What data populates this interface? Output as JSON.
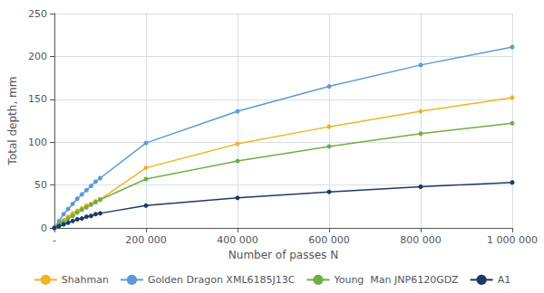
{
  "chart_data": {
    "type": "line",
    "xlabel": "Number of passes N",
    "ylabel": "Total depth, mm",
    "x": [
      0,
      10000,
      20000,
      30000,
      40000,
      50000,
      60000,
      70000,
      80000,
      90000,
      100000,
      200000,
      400000,
      600000,
      800000,
      1000000
    ],
    "series": [
      {
        "name": "Shahman",
        "color": "#f0b323",
        "values": [
          0,
          5,
          9,
          13,
          17,
          20,
          23,
          26,
          28,
          31,
          33,
          70,
          98,
          118,
          136,
          152
        ]
      },
      {
        "name": "Golden Dragon XML6185J13C",
        "color": "#5b9bd5",
        "values": [
          0,
          8,
          16,
          22,
          28,
          34,
          39,
          44,
          49,
          54,
          58,
          99,
          136,
          165,
          190,
          211
        ]
      },
      {
        "name": "Young  Man JNP6120GDZ",
        "color": "#70ad47",
        "values": [
          0,
          4,
          7,
          11,
          14,
          18,
          21,
          24,
          27,
          30,
          33,
          57,
          78,
          95,
          110,
          122
        ]
      },
      {
        "name": "A1",
        "color": "#203864",
        "values": [
          0,
          2,
          4,
          6,
          8,
          10,
          11,
          13,
          14,
          16,
          17,
          26,
          35,
          42,
          48,
          53
        ]
      }
    ],
    "xlim": [
      0,
      1000000
    ],
    "xticks": [
      {
        "value": 0,
        "label": "-"
      },
      {
        "value": 200000,
        "label": "200 000"
      },
      {
        "value": 400000,
        "label": "400 000"
      },
      {
        "value": 600000,
        "label": "600 000"
      },
      {
        "value": 800000,
        "label": "800 000"
      },
      {
        "value": 1000000,
        "label": "1 000 000"
      }
    ],
    "ylim": [
      0,
      250
    ],
    "yticks": [
      0,
      50,
      100,
      150,
      200,
      250
    ],
    "grid": true,
    "legend": "bottom",
    "marker": "circle"
  }
}
